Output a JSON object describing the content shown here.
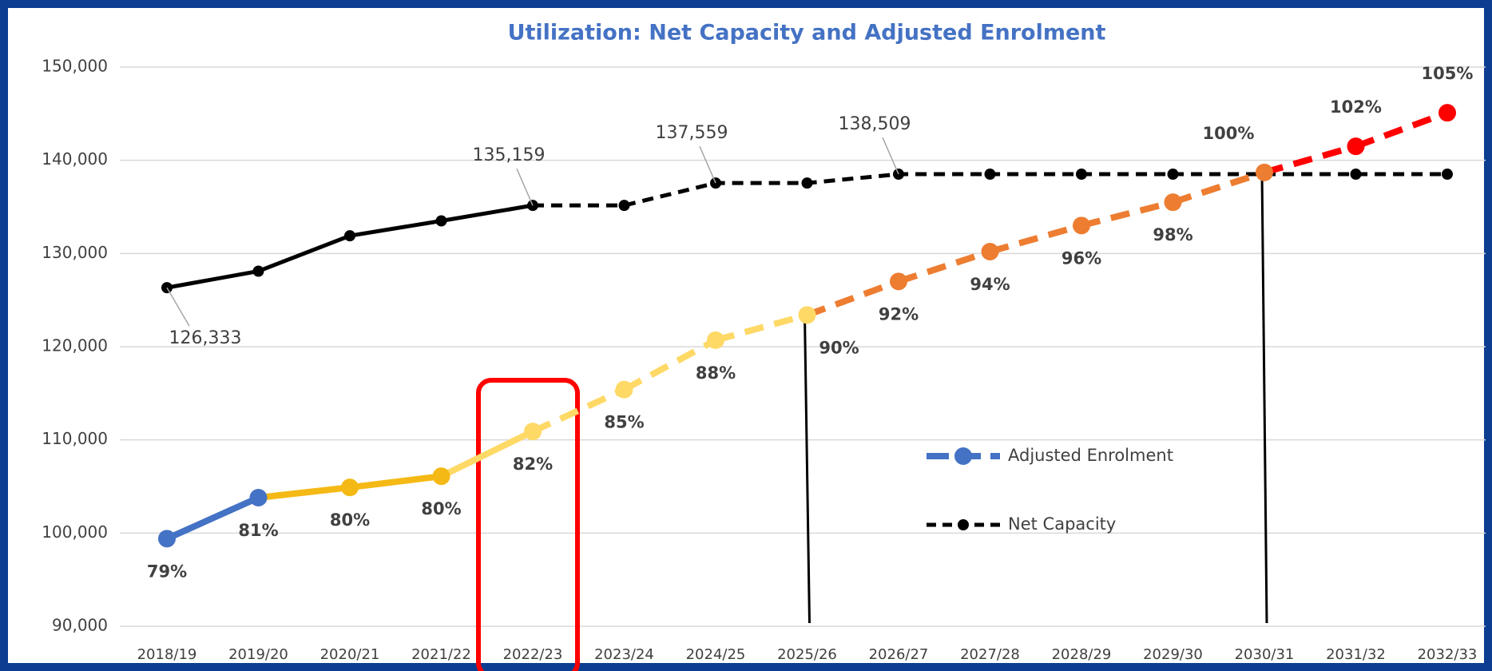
{
  "chart_data": {
    "type": "line",
    "title": "Utilization: Net Capacity and Adjusted Enrolment",
    "categories": [
      "2018/19",
      "2019/20",
      "2020/21",
      "2021/22",
      "2022/23",
      "2023/24",
      "2024/25",
      "2025/26",
      "2026/27",
      "2027/28",
      "2028/29",
      "2029/30",
      "2030/31",
      "2031/32",
      "2032/33"
    ],
    "series": [
      {
        "name": "Adjusted Enrolment",
        "color": "#4472c4",
        "values": [
          99400,
          103800,
          104900,
          106100,
          110900,
          115400,
          120700,
          123400,
          127000,
          130200,
          133000,
          135500,
          138700,
          141500,
          145100
        ],
        "point_colors": [
          "#4472c4",
          "#4472c4",
          "#f5b915",
          "#f5b915",
          "#ffd966",
          "#ffd966",
          "#ffd966",
          "#ffd966",
          "#ed7d31",
          "#ed7d31",
          "#ed7d31",
          "#ed7d31",
          "#ed7d31",
          "#ff0000",
          "#ff0000"
        ],
        "data_labels": [
          "79%",
          "81%",
          "80%",
          "80%",
          "82%",
          "85%",
          "88%",
          "90%",
          "92%",
          "94%",
          "96%",
          "98%",
          "100%",
          "102%",
          "105%"
        ],
        "dash_start": "2022/23"
      },
      {
        "name": "Net Capacity",
        "color": "#000000",
        "values": [
          126333,
          128100,
          131900,
          133500,
          135159,
          135159,
          137559,
          137559,
          138509,
          138509,
          138509,
          138509,
          138509,
          138509,
          138509
        ],
        "value_labels": [
          "126,333",
          null,
          null,
          null,
          "135,159",
          null,
          "137,559",
          null,
          "138,509",
          null,
          null,
          null,
          null,
          null,
          null
        ],
        "dash_start": "2022/23"
      }
    ],
    "ylim": [
      90000,
      150000
    ],
    "yticks": [
      {
        "value": 90000,
        "label": "90,000"
      },
      {
        "value": 100000,
        "label": "100,000"
      },
      {
        "value": 110000,
        "label": "110,000"
      },
      {
        "value": 120000,
        "label": "120,000"
      },
      {
        "value": 130000,
        "label": "130,000"
      },
      {
        "value": 140000,
        "label": "140,000"
      },
      {
        "value": 150000,
        "label": "150,000"
      }
    ],
    "grid": true,
    "legend": "center-right",
    "highlight": "2022/23",
    "drop_lines": [
      "2025/26",
      "2030/31"
    ]
  }
}
